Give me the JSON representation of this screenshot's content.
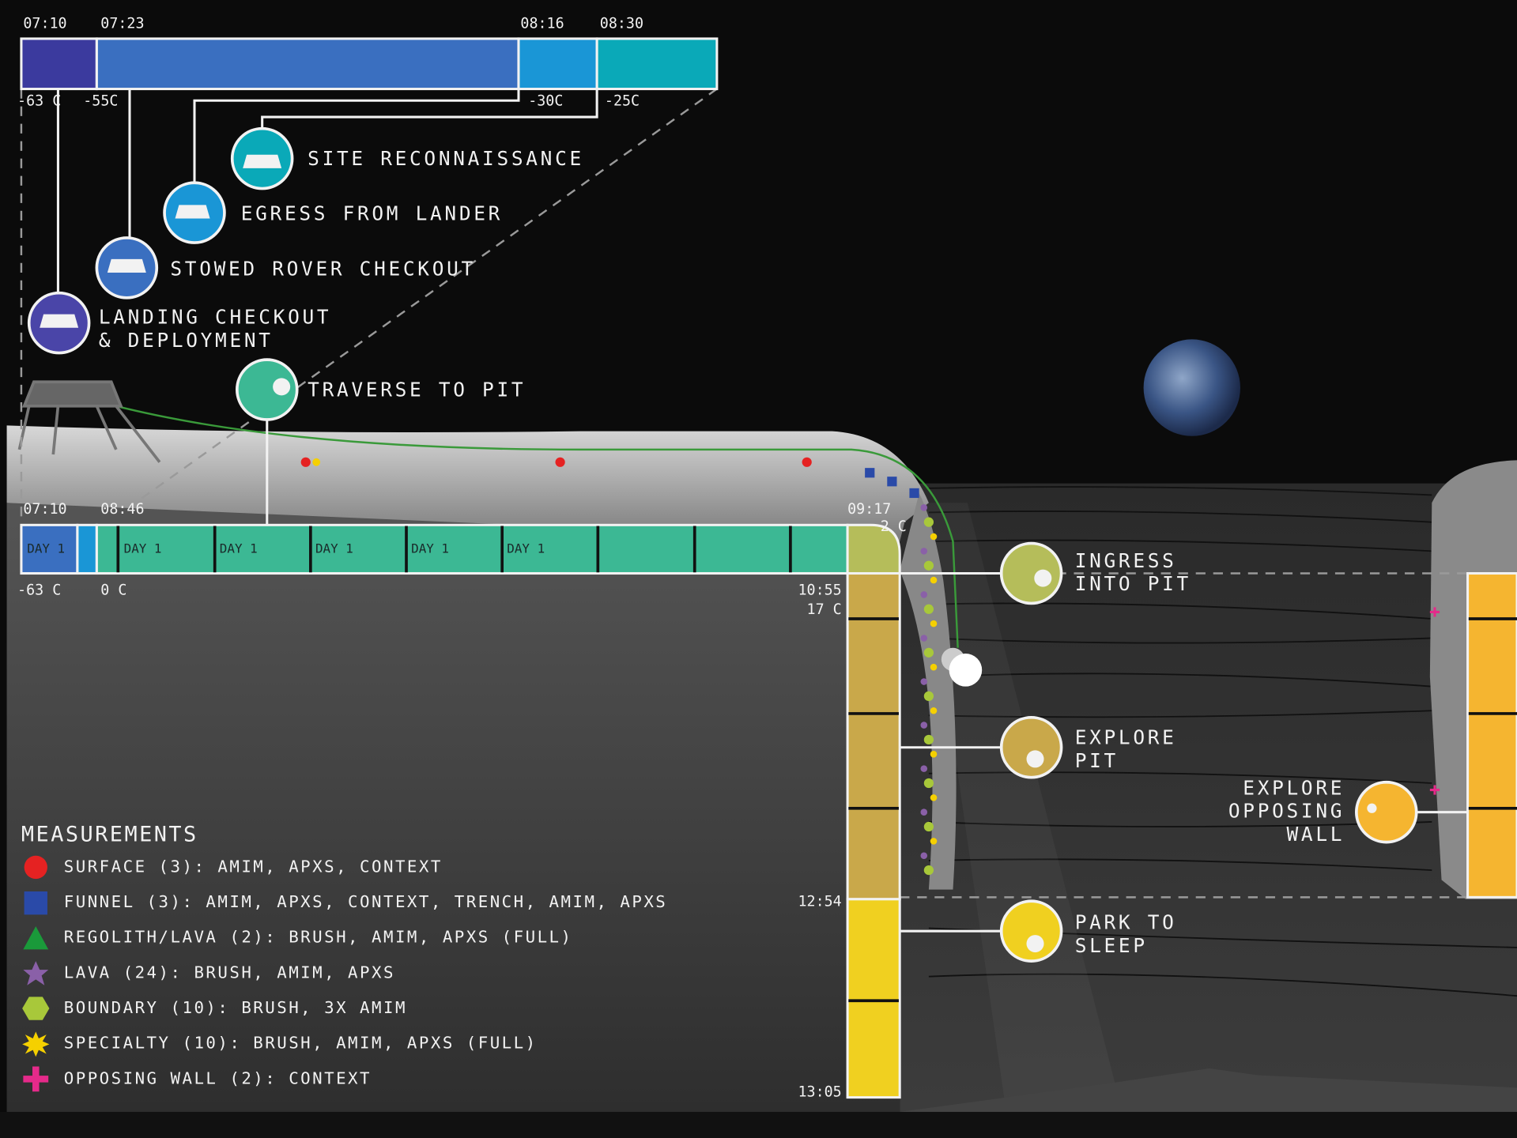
{
  "top_timeline": {
    "times": [
      "07:10",
      "07:23",
      "08:16",
      "08:30"
    ],
    "temperatures": [
      "-63 C",
      "-55C",
      "-30C",
      "-25C"
    ]
  },
  "activities": [
    [
      "SITE RECONNAISSANCE"
    ],
    [
      "EGRESS FROM LANDER"
    ],
    [
      "STOWED ROVER CHECKOUT"
    ],
    [
      "LANDING CHECKOUT",
      "& DEPLOYMENT"
    ],
    [
      "TRAVERSE TO PIT"
    ]
  ],
  "traverse_timeline": {
    "times": [
      "07:10",
      "08:46",
      "09:17"
    ],
    "temperatures": [
      "-63 C",
      "0 C",
      "2 C"
    ],
    "day_labels": [
      "DAY 1",
      "DAY 1",
      "DAY 1",
      "DAY 1",
      "DAY 1",
      "DAY 1"
    ]
  },
  "pit_timeline": {
    "times": [
      "10:55",
      "12:54",
      "13:05"
    ],
    "temperature": "17 C"
  },
  "pit_stages": [
    [
      "INGRESS",
      "INTO PIT"
    ],
    [
      "EXPLORE",
      "PIT"
    ],
    [
      "EXPLORE",
      "OPPOSING",
      "WALL"
    ],
    [
      "PARK TO",
      "SLEEP"
    ]
  ],
  "legend": {
    "title": "MEASUREMENTS",
    "items": [
      "SURFACE (3): AMIM, APXS, CONTEXT",
      "FUNNEL (3): AMIM, APXS, CONTEXT, TRENCH, AMIM, APXS",
      "REGOLITH/LAVA (2): BRUSH, AMIM, APXS (FULL)",
      "LAVA (24): BRUSH, AMIM, APXS",
      "BOUNDARY (10): BRUSH, 3X AMIM",
      "SPECIALTY (10): BRUSH, AMIM, APXS (FULL)",
      "OPPOSING WALL (2): CONTEXT"
    ]
  }
}
